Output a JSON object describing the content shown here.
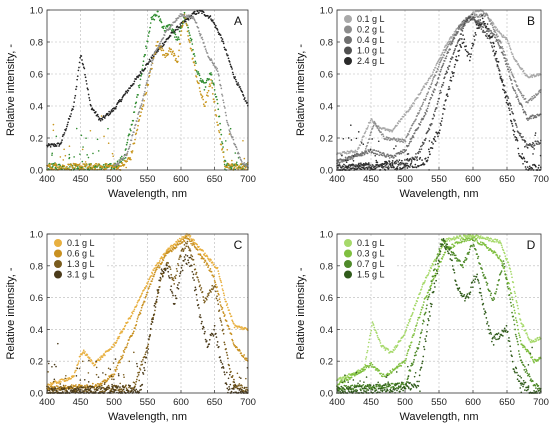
{
  "chart_data": [
    {
      "type": "scatter",
      "panel": "A",
      "xlabel": "Wavelength, nm",
      "ylabel": "Relative intensity, -",
      "xlim": [
        400,
        700
      ],
      "ylim": [
        0,
        1.0
      ],
      "xticks": [
        "400",
        "450",
        "500",
        "550",
        "600",
        "650",
        "700"
      ],
      "yticks": [
        "0.0",
        "0.2",
        "0.4",
        "0.6",
        "0.8",
        "1.0"
      ],
      "grid": true,
      "legend": "none",
      "series": [
        {
          "color": "#222222",
          "noise": 0.012,
          "x": [
            400,
            420,
            440,
            450,
            455,
            465,
            480,
            500,
            530,
            560,
            590,
            620,
            630,
            645,
            660,
            680,
            700
          ],
          "y": [
            0.15,
            0.16,
            0.4,
            0.72,
            0.65,
            0.4,
            0.31,
            0.38,
            0.55,
            0.72,
            0.87,
            0.98,
            0.99,
            0.95,
            0.83,
            0.58,
            0.4
          ]
        },
        {
          "color": "#2e8b2e",
          "noise": 0.02,
          "x": [
            400,
            500,
            515,
            530,
            545,
            555,
            565,
            575,
            585,
            595,
            605,
            615,
            625,
            635,
            645,
            655,
            665,
            675,
            700
          ],
          "y": [
            0.02,
            0.02,
            0.08,
            0.35,
            0.7,
            0.93,
            0.98,
            0.88,
            0.9,
            0.8,
            0.97,
            0.82,
            0.6,
            0.52,
            0.6,
            0.4,
            0.05,
            0.02,
            0.02
          ]
        },
        {
          "color": "#c8961e",
          "noise": 0.02,
          "x": [
            400,
            510,
            525,
            540,
            555,
            565,
            575,
            585,
            595,
            605,
            615,
            625,
            635,
            645,
            655,
            665,
            675,
            700
          ],
          "y": [
            0.02,
            0.02,
            0.08,
            0.35,
            0.62,
            0.8,
            0.72,
            0.75,
            0.68,
            0.98,
            0.75,
            0.55,
            0.4,
            0.55,
            0.28,
            0.04,
            0.02,
            0.02
          ]
        },
        {
          "color": "#909090",
          "noise": 0.01,
          "x": [
            500,
            520,
            540,
            560,
            580,
            600,
            620,
            640,
            655,
            670,
            690,
            700
          ],
          "y": [
            0.02,
            0.1,
            0.4,
            0.72,
            0.88,
            0.97,
            0.95,
            0.72,
            0.62,
            0.28,
            0.05,
            0.02
          ]
        }
      ]
    },
    {
      "type": "scatter",
      "panel": "B",
      "xlabel": "Wavelength, nm",
      "ylabel": "Relative intensity, -",
      "xlim": [
        400,
        700
      ],
      "ylim": [
        0,
        1.0
      ],
      "xticks": [
        "400",
        "450",
        "500",
        "550",
        "600",
        "650",
        "700"
      ],
      "yticks": [
        "0.0",
        "0.2",
        "0.4",
        "0.6",
        "0.8",
        "1.0"
      ],
      "grid": true,
      "legend": "top-left",
      "series": [
        {
          "name": "0.1 g L",
          "color": "#a9a9a9",
          "noise": 0.008,
          "x": [
            400,
            430,
            450,
            460,
            480,
            510,
            540,
            560,
            580,
            600,
            610,
            620,
            640,
            650,
            660,
            680,
            700
          ],
          "y": [
            0.1,
            0.12,
            0.32,
            0.27,
            0.24,
            0.4,
            0.6,
            0.78,
            0.9,
            0.98,
            1.0,
            0.97,
            0.85,
            0.82,
            0.7,
            0.58,
            0.6
          ]
        },
        {
          "name": "0.2 g L",
          "color": "#8c8c8c",
          "noise": 0.01,
          "x": [
            400,
            440,
            455,
            470,
            500,
            530,
            560,
            580,
            600,
            620,
            640,
            650,
            665,
            680,
            700
          ],
          "y": [
            0.05,
            0.1,
            0.3,
            0.2,
            0.18,
            0.45,
            0.75,
            0.88,
            0.96,
            0.97,
            0.8,
            0.68,
            0.52,
            0.42,
            0.5
          ]
        },
        {
          "name": "0.4 g L",
          "color": "#707070",
          "noise": 0.012,
          "x": [
            400,
            450,
            480,
            500,
            530,
            560,
            580,
            590,
            600,
            610,
            630,
            645,
            660,
            680,
            700
          ],
          "y": [
            0.05,
            0.12,
            0.08,
            0.12,
            0.35,
            0.7,
            0.9,
            0.94,
            0.95,
            0.92,
            0.85,
            0.72,
            0.5,
            0.32,
            0.35
          ]
        },
        {
          "name": "1.0 g L",
          "color": "#505050",
          "noise": 0.015,
          "x": [
            400,
            500,
            520,
            540,
            560,
            580,
            590,
            600,
            610,
            625,
            640,
            655,
            665,
            680,
            700
          ],
          "y": [
            0.02,
            0.03,
            0.1,
            0.3,
            0.6,
            0.82,
            0.94,
            0.96,
            0.9,
            0.82,
            0.6,
            0.4,
            0.25,
            0.15,
            0.18
          ]
        },
        {
          "name": "2.4 g L",
          "color": "#2a2a2a",
          "noise": 0.03,
          "x": [
            400,
            530,
            550,
            570,
            585,
            595,
            605,
            615,
            630,
            645,
            660,
            670,
            680,
            700
          ],
          "y": [
            0.0,
            0.05,
            0.25,
            0.6,
            0.82,
            0.7,
            0.88,
            0.95,
            0.8,
            0.5,
            0.25,
            0.08,
            0.02,
            0.0
          ]
        }
      ]
    },
    {
      "type": "scatter",
      "panel": "C",
      "xlabel": "Wavelength, nm",
      "ylabel": "Relative intensity, -",
      "xlim": [
        400,
        700
      ],
      "ylim": [
        0,
        1.0
      ],
      "xticks": [
        "400",
        "450",
        "500",
        "550",
        "600",
        "650",
        "700"
      ],
      "yticks": [
        "0.0",
        "0.2",
        "0.4",
        "0.6",
        "0.8",
        "1.0"
      ],
      "grid": true,
      "legend": "top-left",
      "series": [
        {
          "name": "0.1 g L",
          "color": "#e8b040",
          "noise": 0.01,
          "x": [
            400,
            440,
            450,
            455,
            470,
            500,
            530,
            560,
            580,
            600,
            610,
            620,
            640,
            655,
            665,
            680,
            700
          ],
          "y": [
            0.05,
            0.1,
            0.24,
            0.26,
            0.18,
            0.3,
            0.52,
            0.78,
            0.9,
            0.97,
            1.0,
            0.95,
            0.85,
            0.78,
            0.6,
            0.42,
            0.4
          ]
        },
        {
          "name": "0.6 g L",
          "color": "#c89020",
          "noise": 0.012,
          "x": [
            400,
            480,
            500,
            530,
            560,
            580,
            600,
            610,
            620,
            640,
            650,
            660,
            680,
            700
          ],
          "y": [
            0.03,
            0.05,
            0.12,
            0.4,
            0.75,
            0.88,
            0.95,
            0.98,
            0.92,
            0.8,
            0.72,
            0.55,
            0.3,
            0.2
          ]
        },
        {
          "name": "1.3 g L",
          "color": "#7a5c1e",
          "noise": 0.02,
          "x": [
            400,
            530,
            550,
            570,
            580,
            590,
            600,
            610,
            620,
            635,
            650,
            660,
            670,
            680,
            700
          ],
          "y": [
            0.02,
            0.03,
            0.3,
            0.72,
            0.82,
            0.7,
            0.88,
            0.95,
            0.8,
            0.58,
            0.68,
            0.45,
            0.2,
            0.05,
            0.02
          ]
        },
        {
          "name": "3.1 g L",
          "color": "#4a3a1a",
          "noise": 0.03,
          "x": [
            400,
            540,
            555,
            570,
            580,
            590,
            605,
            615,
            625,
            640,
            650,
            660,
            670,
            700
          ],
          "y": [
            0.0,
            0.02,
            0.4,
            0.75,
            0.78,
            0.55,
            0.85,
            0.82,
            0.55,
            0.3,
            0.4,
            0.2,
            0.03,
            0.0
          ]
        }
      ]
    },
    {
      "type": "scatter",
      "panel": "D",
      "xlabel": "Wavelength, nm",
      "ylabel": "Relative intensity, -",
      "xlim": [
        400,
        700
      ],
      "ylim": [
        0,
        1.0
      ],
      "xticks": [
        "400",
        "450",
        "500",
        "550",
        "600",
        "650",
        "700"
      ],
      "yticks": [
        "0.0",
        "0.2",
        "0.4",
        "0.6",
        "0.8",
        "1.0"
      ],
      "grid": true,
      "legend": "top-left",
      "series": [
        {
          "name": "0.1 g L",
          "color": "#a6d96a",
          "noise": 0.01,
          "x": [
            400,
            440,
            452,
            465,
            480,
            500,
            530,
            560,
            580,
            600,
            620,
            640,
            655,
            670,
            685,
            700
          ],
          "y": [
            0.08,
            0.15,
            0.44,
            0.3,
            0.25,
            0.38,
            0.72,
            0.96,
            0.98,
            0.99,
            0.97,
            0.95,
            0.78,
            0.45,
            0.32,
            0.35
          ]
        },
        {
          "name": "0.3 g L",
          "color": "#7fbf3f",
          "noise": 0.012,
          "x": [
            400,
            450,
            470,
            500,
            530,
            560,
            580,
            600,
            620,
            640,
            655,
            670,
            690,
            700
          ],
          "y": [
            0.05,
            0.18,
            0.1,
            0.2,
            0.6,
            0.9,
            0.95,
            0.97,
            0.92,
            0.85,
            0.65,
            0.32,
            0.2,
            0.22
          ]
        },
        {
          "name": "0.7 g L",
          "color": "#4f8a2a",
          "noise": 0.015,
          "x": [
            400,
            500,
            520,
            540,
            555,
            570,
            585,
            600,
            615,
            630,
            645,
            660,
            670,
            690,
            700
          ],
          "y": [
            0.03,
            0.05,
            0.3,
            0.72,
            0.97,
            0.88,
            0.8,
            0.95,
            0.75,
            0.58,
            0.82,
            0.45,
            0.2,
            0.05,
            0.03
          ]
        },
        {
          "name": "1.5 g L",
          "color": "#2f5a1a",
          "noise": 0.03,
          "x": [
            400,
            520,
            540,
            555,
            565,
            575,
            590,
            605,
            620,
            630,
            640,
            650,
            660,
            680,
            700
          ],
          "y": [
            0.0,
            0.05,
            0.6,
            0.95,
            0.9,
            0.68,
            0.58,
            0.75,
            0.45,
            0.32,
            0.38,
            0.4,
            0.15,
            0.02,
            0.0
          ]
        }
      ]
    }
  ]
}
